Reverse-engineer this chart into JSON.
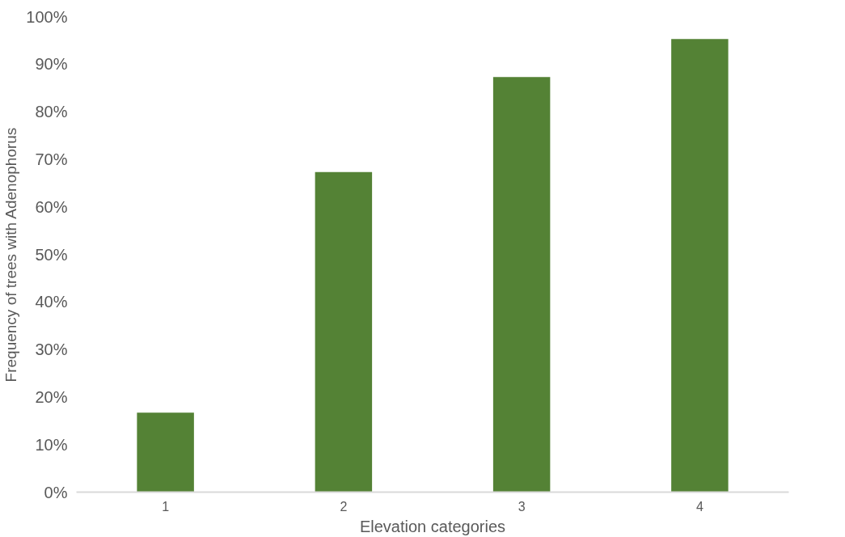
{
  "chart_data": {
    "type": "bar",
    "xlabel": "Elevation categories",
    "ylabel": "Frequency of trees with Adenophorus",
    "categories": [
      "1",
      "2",
      "3",
      "4"
    ],
    "values": [
      16.7,
      67.3,
      87.3,
      95.3
    ],
    "color": "#548235",
    "ylim": [
      0,
      100
    ],
    "yticks": [
      {
        "value": 0,
        "label": "0%"
      },
      {
        "value": 10,
        "label": "10%"
      },
      {
        "value": 20,
        "label": "20%"
      },
      {
        "value": 30,
        "label": "30%"
      },
      {
        "value": 40,
        "label": "40%"
      },
      {
        "value": 50,
        "label": "50%"
      },
      {
        "value": 60,
        "label": "60%"
      },
      {
        "value": 70,
        "label": "70%"
      },
      {
        "value": 80,
        "label": "80%"
      },
      {
        "value": 90,
        "label": "90%"
      },
      {
        "value": 100,
        "label": "100%"
      }
    ]
  }
}
